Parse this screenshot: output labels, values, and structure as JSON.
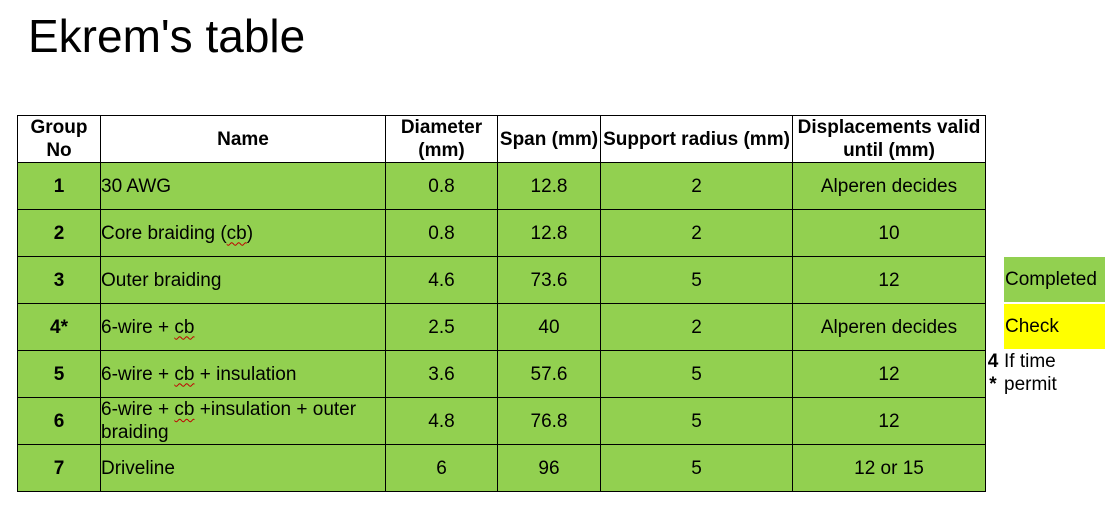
{
  "title": "Ekrem's table",
  "table": {
    "headers": {
      "group": "Group No",
      "name": "Name",
      "diameter": "Diameter (mm)",
      "span": "Span (mm)",
      "support_radius": "Support radius (mm)",
      "displacements": "Displacements valid until (mm)"
    },
    "rows": [
      {
        "group": "1",
        "name": "30 AWG",
        "diameter": "0.8",
        "span": "12.8",
        "support_radius": "2",
        "displacements": "Alperen decides"
      },
      {
        "group": "2",
        "name_before": "Core braiding (",
        "name_sq": "cb",
        "name_after": ")",
        "diameter": "0.8",
        "span": "12.8",
        "support_radius": "2",
        "displacements": "10"
      },
      {
        "group": "3",
        "name": "Outer braiding",
        "diameter": "4.6",
        "span": "73.6",
        "support_radius": "5",
        "displacements": "12"
      },
      {
        "group": "4*",
        "name_before": "6-wire + ",
        "name_sq": "cb",
        "name_after": "",
        "diameter": "2.5",
        "span": "40",
        "support_radius": "2",
        "displacements": "Alperen decides"
      },
      {
        "group": "5",
        "name_before": "6-wire + ",
        "name_sq": "cb",
        "name_after": " + insulation",
        "diameter": "3.6",
        "span": "57.6",
        "support_radius": "5",
        "displacements": "12"
      },
      {
        "group": "6",
        "name_before": "6-wire + ",
        "name_sq": "cb",
        "name_after": " +insulation + outer braiding",
        "diameter": "4.8",
        "span": "76.8",
        "support_radius": "5",
        "displacements": "12"
      },
      {
        "group": "7",
        "name": "Driveline",
        "diameter": "6",
        "span": "96",
        "support_radius": "5",
        "displacements": "12 or 15"
      }
    ]
  },
  "legend": {
    "completed": "Completed",
    "check": "Check",
    "note_marker_line1": "4",
    "note_marker_line2": "*",
    "note_text": "If time permit"
  },
  "colors": {
    "completed": "#92d050",
    "check": "#ffff00"
  }
}
